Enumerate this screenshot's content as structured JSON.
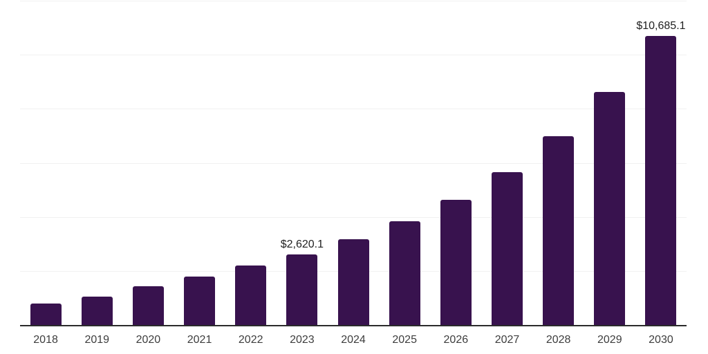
{
  "chart_data": {
    "type": "bar",
    "title": "",
    "xlabel": "",
    "ylabel": "",
    "categories": [
      "2018",
      "2019",
      "2020",
      "2021",
      "2022",
      "2023",
      "2024",
      "2025",
      "2026",
      "2027",
      "2028",
      "2029",
      "2030"
    ],
    "values": [
      790,
      1060,
      1430,
      1785,
      2195,
      2620.1,
      3165,
      3830,
      4630,
      5660,
      6985,
      8620,
      10685.1
    ],
    "value_labels": [
      "",
      "",
      "",
      "",
      "",
      "$2,620.1",
      "",
      "",
      "",
      "",
      "",
      "",
      "$10,685.1"
    ],
    "ylim": [
      0,
      12000
    ],
    "gridline_interval": 2000,
    "grid": true,
    "y_axis_tick_labels_visible": false,
    "legend_position": "none"
  },
  "colors": {
    "bar": "#38124E",
    "grid_line": "#F1F1F1",
    "axis_line": "#2B2B2B",
    "x_tick_label": "#3D3D3D",
    "value_label": "#1F1F1F",
    "background": "#FFFFFF"
  }
}
